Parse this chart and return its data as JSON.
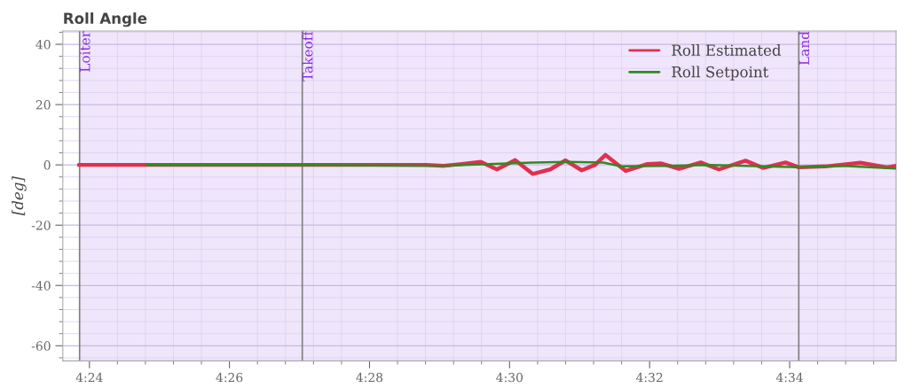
{
  "chart_data": {
    "type": "line",
    "title": "Roll Angle",
    "ylabel": "[deg]",
    "xlim": [
      263.62,
      275.52
    ],
    "ylim": [
      -65,
      44.4
    ],
    "xticks": [
      {
        "value": 264,
        "label": "4:24"
      },
      {
        "value": 266,
        "label": "4:26"
      },
      {
        "value": 268,
        "label": "4:28"
      },
      {
        "value": 270,
        "label": "4:30"
      },
      {
        "value": 272,
        "label": "4:32"
      },
      {
        "value": 274,
        "label": "4:34"
      }
    ],
    "yticks": [
      -60,
      -40,
      -20,
      0,
      20,
      40
    ],
    "grid": true,
    "legend": "top right",
    "bands": [
      {
        "axis": "x",
        "from": 263.86,
        "to": 275.52,
        "color": "#efe6fb"
      }
    ],
    "ref_lines": [
      {
        "axis": "x",
        "value": 263.86,
        "label": "Loiter",
        "color": "#808080"
      },
      {
        "axis": "x",
        "value": 267.04,
        "label": "Takeoff",
        "color": "#808080"
      },
      {
        "axis": "x",
        "value": 274.13,
        "label": "Land",
        "color": "#808080"
      }
    ],
    "series": [
      {
        "name": "Roll Estimated",
        "color": "#e0304e",
        "x": [
          263.85,
          266.53,
          267.04,
          268.81,
          269.06,
          269.32,
          269.59,
          269.82,
          270.08,
          270.33,
          270.58,
          270.8,
          271.03,
          271.22,
          271.37,
          271.66,
          271.97,
          272.16,
          272.42,
          272.73,
          272.99,
          273.37,
          273.62,
          273.94,
          274.13,
          274.51,
          275.01,
          275.39,
          275.52
        ],
        "values": [
          0,
          0,
          0,
          0,
          -0.3,
          0.3,
          1.0,
          -1.5,
          1.6,
          -3,
          -1.5,
          1.5,
          -1.8,
          0,
          3.3,
          -2.0,
          0.3,
          0.5,
          -1.3,
          0.8,
          -1.5,
          1.4,
          -1.0,
          0.8,
          -0.8,
          -0.5,
          0.7,
          -0.8,
          -0.3
        ]
      },
      {
        "name": "Roll Setpoint",
        "color": "#2e8b22",
        "x": [
          264.82,
          267.04,
          269.06,
          270.33,
          270.84,
          271.34,
          271.59,
          272.23,
          272.86,
          274.13,
          274.76,
          275.52
        ],
        "values": [
          0,
          0,
          -0.3,
          0.8,
          1.0,
          0.8,
          -0.5,
          -0.3,
          0,
          -0.8,
          -0.3,
          -1.2
        ]
      }
    ]
  }
}
